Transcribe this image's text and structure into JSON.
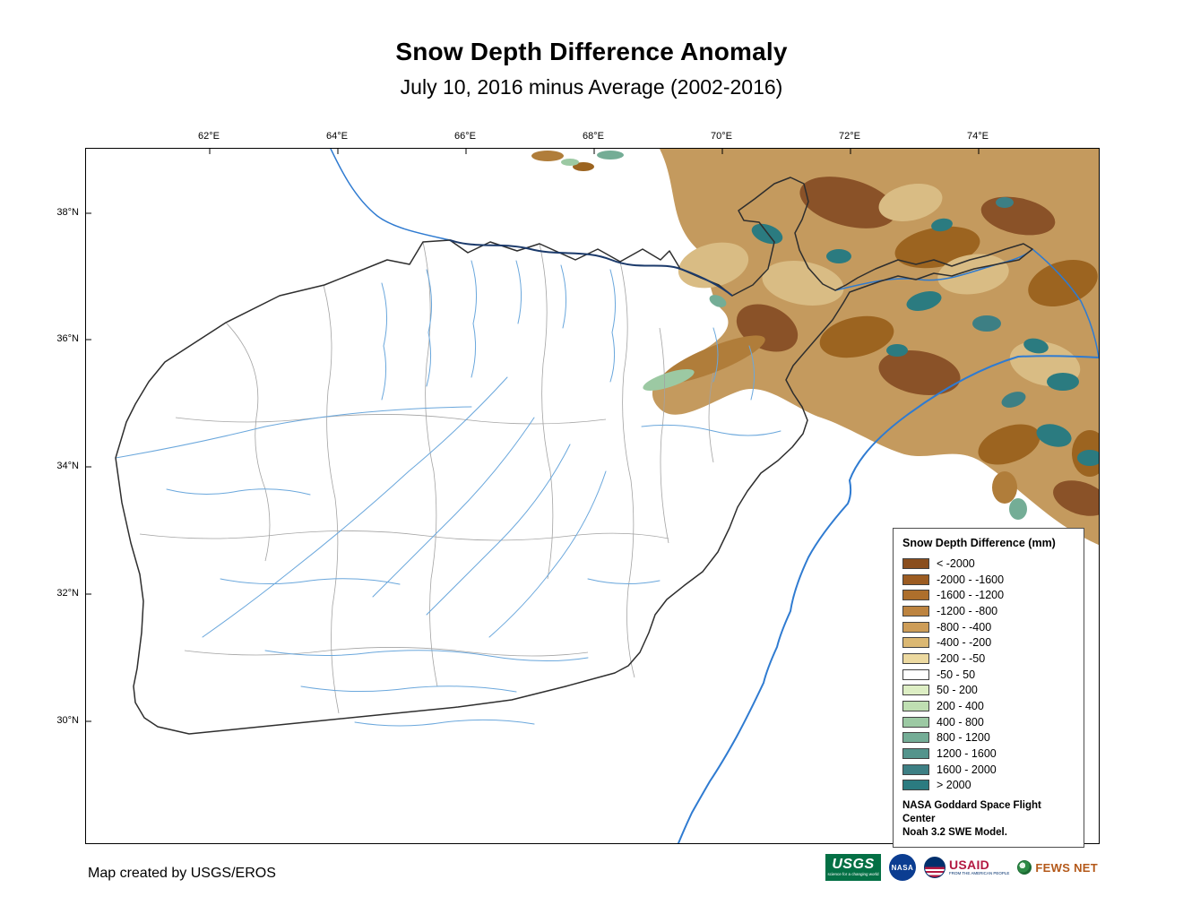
{
  "page": {
    "title": "Snow Depth Difference Anomaly",
    "subtitle": "July 10, 2016 minus Average (2002-2016)"
  },
  "map": {
    "lon_labels": [
      "62°E",
      "64°E",
      "66°E",
      "68°E",
      "70°E",
      "72°E",
      "74°E"
    ],
    "lat_labels": [
      "38°N",
      "36°N",
      "34°N",
      "32°N",
      "30°N"
    ]
  },
  "legend": {
    "title": "Snow Depth Difference (mm)",
    "entries": [
      {
        "label": "< -2000",
        "color": "#8a4e1e"
      },
      {
        "label": "-2000 - -1600",
        "color": "#9c5c22"
      },
      {
        "label": "-1600 - -1200",
        "color": "#ad6f2c"
      },
      {
        "label": "-1200 - -800",
        "color": "#bd8440"
      },
      {
        "label": "-800 - -400",
        "color": "#cd9d58"
      },
      {
        "label": "-400 - -200",
        "color": "#dbb873"
      },
      {
        "label": "-200 - -50",
        "color": "#ecd9a0"
      },
      {
        "label": "-50 - 50",
        "color": "#ffffff"
      },
      {
        "label": "50 - 200",
        "color": "#ddeec4"
      },
      {
        "label": "200 - 400",
        "color": "#bfdfb2"
      },
      {
        "label": "400 - 800",
        "color": "#9cc9a3"
      },
      {
        "label": "800 - 1200",
        "color": "#74ad96"
      },
      {
        "label": "1200 - 1600",
        "color": "#54948c"
      },
      {
        "label": "1600 - 2000",
        "color": "#3d7f84"
      },
      {
        "label": "> 2000",
        "color": "#2b7b80"
      }
    ],
    "note_line1": "NASA Goddard Space Flight Center",
    "note_line2": "Noah 3.2 SWE Model."
  },
  "footer": {
    "credit": "Map created by USGS/EROS",
    "logos": {
      "usgs": {
        "name": "USGS",
        "tagline": "science for a changing world"
      },
      "nasa": {
        "name": "NASA"
      },
      "usaid": {
        "name": "USAID",
        "tagline": "FROM THE AMERICAN PEOPLE"
      },
      "fewsnet": {
        "name": "FEWS NET"
      }
    }
  }
}
